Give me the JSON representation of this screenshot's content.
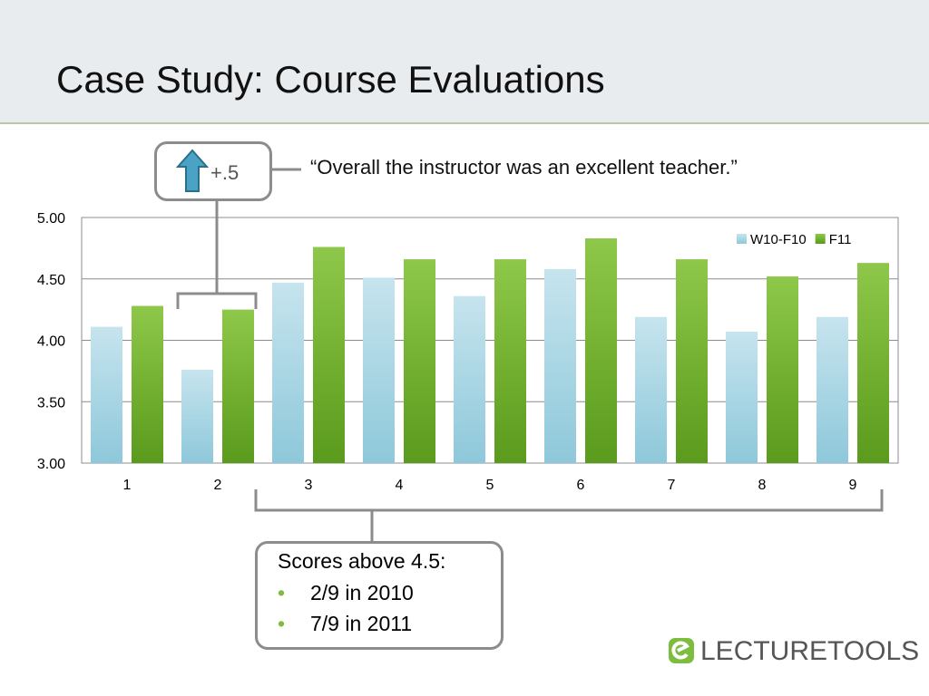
{
  "slide": {
    "title": "Case Study: Course Evaluations",
    "delta_label": "+.5",
    "quote": "“Overall the instructor was an excellent teacher.”",
    "scores_box": {
      "title": "Scores above 4.5:",
      "bullets": [
        "2/9 in 2010",
        "7/9 in 2011"
      ]
    },
    "logo_text": "LECTURETOOLS"
  },
  "colors": {
    "series1": "#a9d6e4",
    "series2": "#6aaa2a",
    "accent_green": "#7cbc3e",
    "callout_border": "#8c8c8c"
  },
  "chart_data": {
    "type": "bar",
    "categories": [
      "1",
      "2",
      "3",
      "4",
      "5",
      "6",
      "7",
      "8",
      "9"
    ],
    "series": [
      {
        "name": "W10-F10",
        "values": [
          4.11,
          3.76,
          4.47,
          4.51,
          4.36,
          4.58,
          4.19,
          4.07,
          4.19
        ]
      },
      {
        "name": "F11",
        "values": [
          4.28,
          4.25,
          4.76,
          4.66,
          4.66,
          4.83,
          4.66,
          4.52,
          4.63
        ]
      }
    ],
    "ylim": [
      3.0,
      5.0
    ],
    "yticks": [
      "3.00",
      "3.50",
      "4.00",
      "4.50",
      "5.00"
    ],
    "grid": true,
    "legend": "top-right"
  }
}
